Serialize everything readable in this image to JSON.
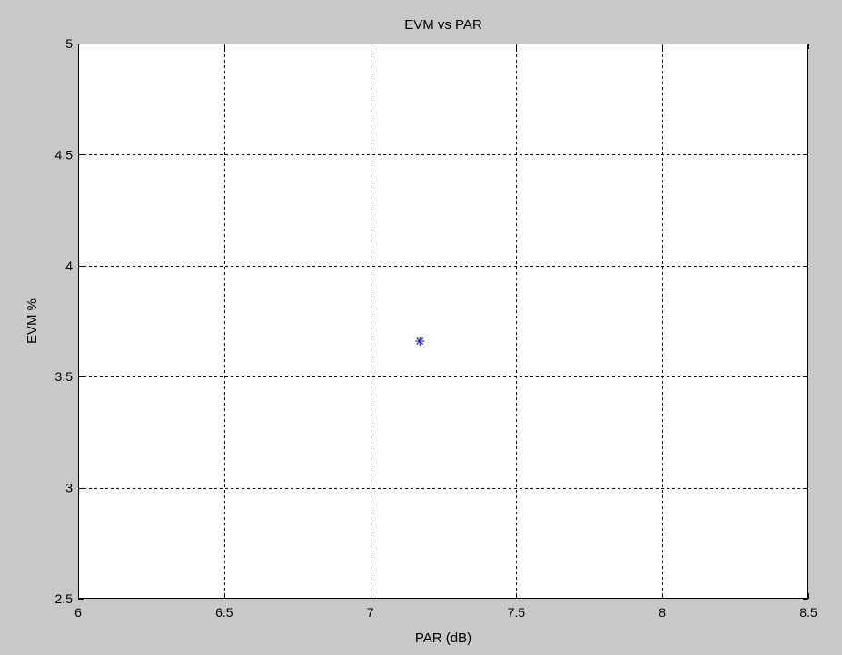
{
  "chart_data": {
    "type": "scatter",
    "title": "EVM vs PAR",
    "xlabel": "PAR (dB)",
    "ylabel": "EVM %",
    "xlim": [
      6,
      8.5
    ],
    "ylim": [
      2.5,
      5
    ],
    "xticks": [
      6,
      6.5,
      7,
      7.5,
      8,
      8.5
    ],
    "yticks": [
      2.5,
      3,
      3.5,
      4,
      4.5,
      5
    ],
    "xtick_labels": [
      "6",
      "6.5",
      "7",
      "7.5",
      "8",
      "8.5"
    ],
    "ytick_labels": [
      "2.5",
      "3",
      "3.5",
      "4",
      "4.5",
      "5"
    ],
    "grid": true,
    "marker": "asterisk",
    "series": [
      {
        "x": [
          7.17
        ],
        "y": [
          3.66
        ],
        "color": "#1f1fa8"
      }
    ]
  },
  "colors": {
    "figure_background": "#c8c8c8",
    "plot_background": "#ffffff",
    "axis": "#000000",
    "grid": "#000000"
  }
}
